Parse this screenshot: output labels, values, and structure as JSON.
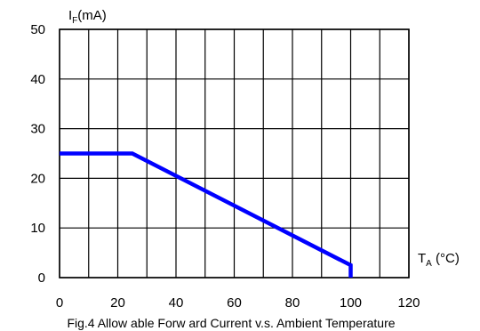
{
  "chart_data": {
    "type": "line",
    "caption": "Fig.4 Allow able Forw ard Current v.s. Ambient Temperature",
    "ylabel": {
      "main": "I",
      "sub": "F",
      "unit": "(mA)"
    },
    "xlabel": {
      "main": "T",
      "sub": "A",
      "unit": " (°C)"
    },
    "xlim": [
      0,
      120
    ],
    "ylim": [
      0,
      50
    ],
    "x_ticks": [
      "0",
      "20",
      "40",
      "60",
      "80",
      "100",
      "120"
    ],
    "y_ticks": [
      "0",
      "10",
      "20",
      "30",
      "40",
      "50"
    ],
    "x_grid_step": 10,
    "y_grid_step": 10,
    "grid": true,
    "line_color": "#0000ff",
    "series": [
      {
        "x": [
          0,
          25,
          100,
          100
        ],
        "y": [
          25,
          25,
          2.5,
          0
        ]
      }
    ]
  }
}
